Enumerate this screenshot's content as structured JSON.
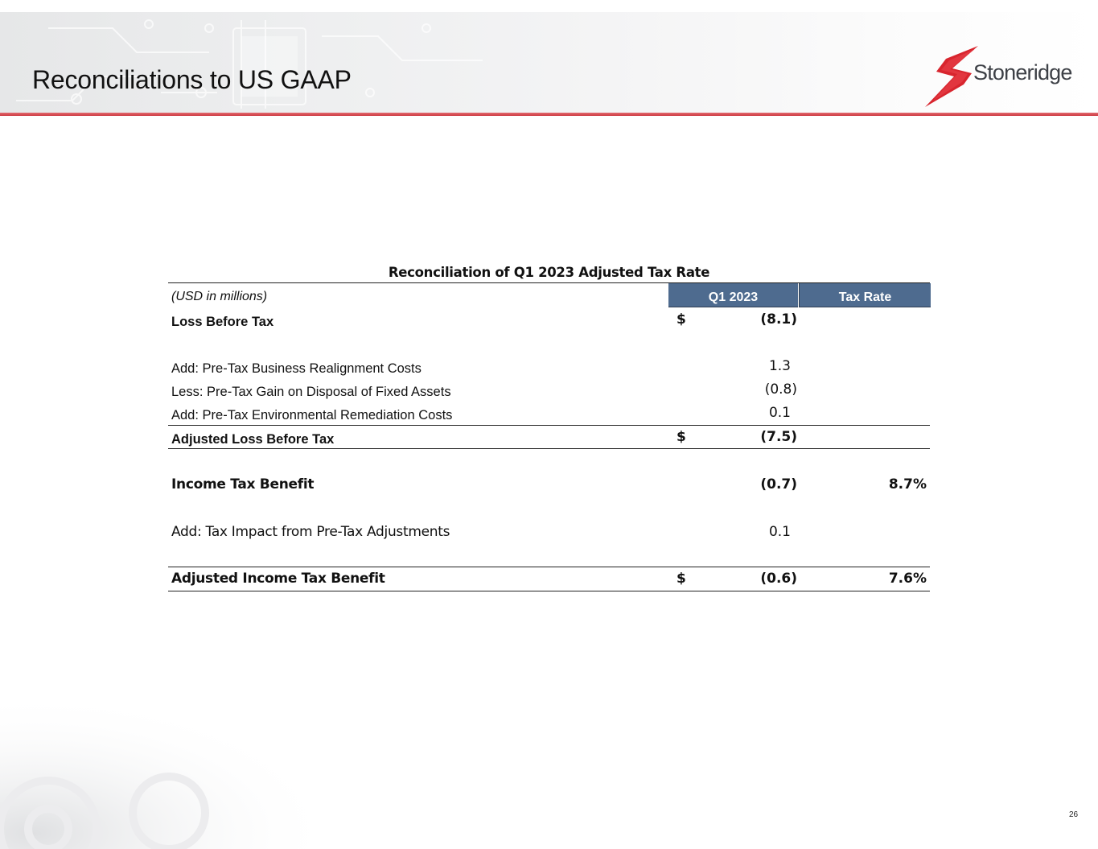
{
  "slide": {
    "title": "Reconciliations to US GAAP",
    "page_number": "26"
  },
  "logo": {
    "brand": "Stoneridge",
    "mark_color": "#d8252e"
  },
  "table": {
    "title": "Reconciliation of Q1 2023 Adjusted Tax Rate",
    "unit_label": "(USD in millions)",
    "columns": [
      "Q1 2023",
      "Tax Rate"
    ],
    "header_color": "#4e6b8f",
    "rows": [
      {
        "label": "Loss Before Tax",
        "currency": "$",
        "value": "(8.1)",
        "rate": ""
      },
      {
        "label": "Add: Pre-Tax Business Realignment Costs",
        "currency": "",
        "value": "1.3",
        "rate": ""
      },
      {
        "label": "Less: Pre-Tax Gain on Disposal of Fixed Assets",
        "currency": "",
        "value": "(0.8)",
        "rate": ""
      },
      {
        "label": "Add: Pre-Tax Environmental Remediation Costs",
        "currency": "",
        "value": "0.1",
        "rate": ""
      },
      {
        "label": "Adjusted Loss Before Tax",
        "currency": "$",
        "value": "(7.5)",
        "rate": ""
      },
      {
        "label": "Income Tax Benefit",
        "currency": "",
        "value": "(0.7)",
        "rate": "8.7%"
      },
      {
        "label": "Add: Tax Impact from Pre-Tax Adjustments",
        "currency": "",
        "value": "0.1",
        "rate": ""
      },
      {
        "label": "Adjusted Income Tax Benefit",
        "currency": "$",
        "value": "(0.6)",
        "rate": "7.6%"
      }
    ]
  }
}
